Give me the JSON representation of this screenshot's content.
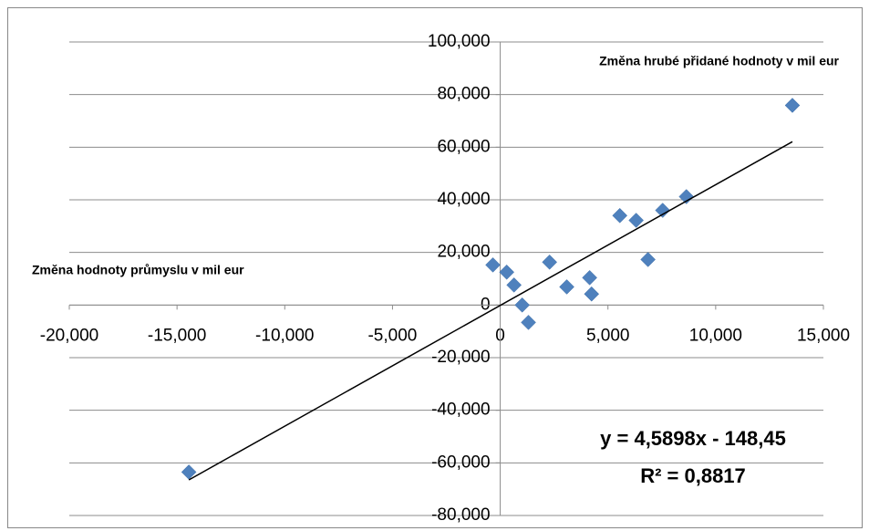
{
  "chart_data": {
    "type": "scatter",
    "x_label": "Změna hodnoty průmyslu v mil eur",
    "y_label": "Změna hrubé přidané hodnoty v mil eur",
    "x": [
      -14450,
      -340,
      300,
      640,
      1020,
      1310,
      2290,
      3090,
      4150,
      4240,
      5550,
      6310,
      6860,
      7540,
      8640,
      13560
    ],
    "values": [
      -63500,
      15250,
      12500,
      7600,
      0,
      -6600,
      16300,
      6900,
      10400,
      4200,
      34000,
      32200,
      17300,
      36000,
      41200,
      75900
    ],
    "color": "#4f81bd",
    "xlim": [
      -20000,
      15000
    ],
    "xticks": [
      {
        "value": -20000,
        "label": "-20,000"
      },
      {
        "value": -15000,
        "label": "-15,000"
      },
      {
        "value": -10000,
        "label": "-10,000"
      },
      {
        "value": -5000,
        "label": "-5,000"
      },
      0,
      {
        "value": 5000,
        "label": "5,000"
      },
      {
        "value": 10000,
        "label": "10,000"
      },
      {
        "value": 15000,
        "label": "15,000"
      }
    ],
    "ylim": [
      -80000,
      100000
    ],
    "yticks": [
      {
        "value": -80000,
        "label": "-80,000"
      },
      {
        "value": -60000,
        "label": "-60,000"
      },
      {
        "value": -40000,
        "label": "-40,000"
      },
      {
        "value": -20000,
        "label": "-20,000"
      },
      0,
      {
        "value": 20000,
        "label": "20,000"
      },
      {
        "value": 40000,
        "label": "40,000"
      },
      {
        "value": 60000,
        "label": "60,000"
      },
      {
        "value": 80000,
        "label": "80,000"
      },
      {
        "value": 100000,
        "label": "100,000"
      }
    ],
    "grid": true,
    "trendline": {
      "slope": 4.5898,
      "intercept": -148.45,
      "color": "#000000",
      "equation": "y = 4,5898x - 148,45",
      "r2": "R² = 0,8817"
    }
  }
}
